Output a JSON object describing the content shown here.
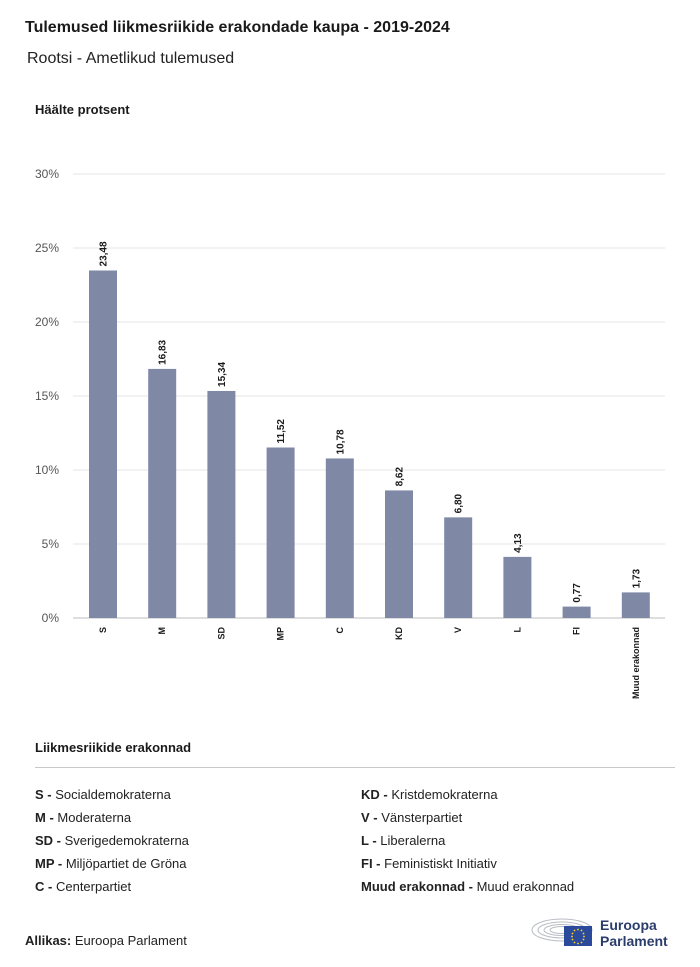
{
  "header": {
    "title": "Tulemused liikmesriikide erakondade kaupa - 2019-2024",
    "subtitle": "Rootsi - Ametlikud tulemused"
  },
  "chart_data": {
    "type": "bar",
    "ylabel": "Häälte protsent",
    "ylim": [
      0,
      30
    ],
    "yticks": [
      "0%",
      "5%",
      "10%",
      "15%",
      "20%",
      "25%",
      "30%"
    ],
    "yticks_values": [
      0,
      5,
      10,
      15,
      20,
      25,
      30
    ],
    "grid": true,
    "bar_color": "#7f89a6",
    "categories": [
      "S",
      "M",
      "SD",
      "MP",
      "C",
      "KD",
      "V",
      "L",
      "FI",
      "Muud erakonnad"
    ],
    "values": [
      23.48,
      16.83,
      15.34,
      11.52,
      10.78,
      8.62,
      6.8,
      4.13,
      0.77,
      1.73
    ],
    "value_labels": [
      "23,48",
      "16,83",
      "15,34",
      "11,52",
      "10,78",
      "8,62",
      "6,80",
      "4,13",
      "0,77",
      "1,73"
    ]
  },
  "legend": {
    "title": "Liikmesriikide erakonnad",
    "items": [
      {
        "abbr": "S -",
        "name": "Socialdemokraterna"
      },
      {
        "abbr": "M -",
        "name": "Moderaterna"
      },
      {
        "abbr": "SD -",
        "name": "Sverigedemokraterna"
      },
      {
        "abbr": "MP -",
        "name": "Miljöpartiet de Gröna"
      },
      {
        "abbr": "C -",
        "name": "Centerpartiet"
      },
      {
        "abbr": "KD -",
        "name": "Kristdemokraterna"
      },
      {
        "abbr": "V -",
        "name": "Vänsterpartiet"
      },
      {
        "abbr": "L -",
        "name": "Liberalerna"
      },
      {
        "abbr": "FI -",
        "name": "Feministiskt Initiativ"
      },
      {
        "abbr": "Muud erakonnad -",
        "name": "Muud erakonnad"
      }
    ]
  },
  "footer": {
    "source_label": "Allikas:",
    "source_value": "Euroopa Parlament",
    "logo_line1": "Euroopa",
    "logo_line2": "Parlament",
    "logo_icon": "european-parliament-logo-icon"
  }
}
